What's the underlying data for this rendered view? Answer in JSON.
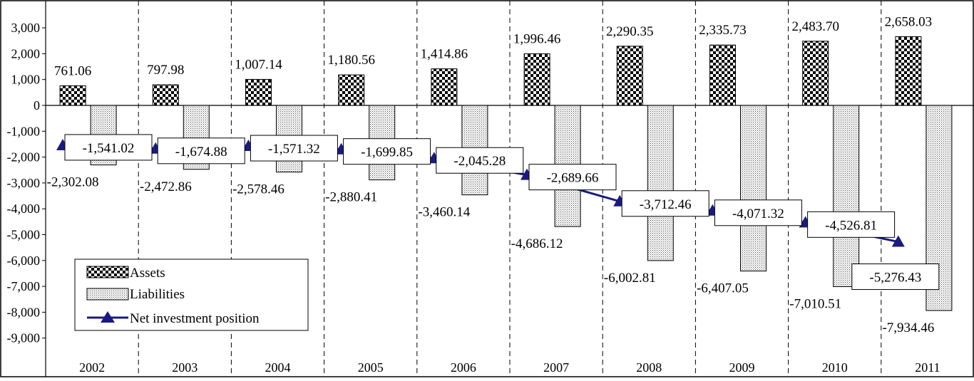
{
  "chart_data": {
    "type": "bar",
    "categories": [
      "2002",
      "2003",
      "2004",
      "2005",
      "2006",
      "2007",
      "2008",
      "2009",
      "2010",
      "2011"
    ],
    "series": [
      {
        "name": "Assets",
        "kind": "bar",
        "pattern": "checkerboard",
        "values": [
          761.06,
          797.98,
          1007.14,
          1180.56,
          1414.86,
          1996.46,
          2290.35,
          2335.73,
          2483.7,
          2658.03
        ],
        "labels": [
          "761.06",
          "797.98",
          "1,007.14",
          "1,180.56",
          "1,414.86",
          "1,996.46",
          "2,290.35",
          "2,335.73",
          "2,483.70",
          "2,658.03"
        ]
      },
      {
        "name": "Liabilities",
        "kind": "bar",
        "pattern": "dotted",
        "values": [
          -2302.08,
          -2472.86,
          -2578.46,
          -2880.41,
          -3460.14,
          -4686.12,
          -6002.81,
          -6407.05,
          -7010.51,
          -7934.46
        ],
        "labels": [
          "-2,302.08",
          "-2,472.86",
          "-2,578.46",
          "-2,880.41",
          "-3,460.14",
          "-4,686.12",
          "-6,002.81",
          "-6,407.05",
          "-7,010.51",
          "-7,934.46"
        ]
      },
      {
        "name": "Net investment position",
        "kind": "line",
        "marker": "triangle",
        "color": "#1a1a80",
        "values": [
          -1541.02,
          -1674.88,
          -1571.32,
          -1699.85,
          -2045.28,
          -2689.66,
          -3712.46,
          -4071.32,
          -4526.81,
          -5276.43
        ],
        "labels": [
          "-1,541.02",
          "-1,674.88",
          "-1,571.32",
          "-1,699.85",
          "-2,045.28",
          "-2,689.66",
          "-3,712.46",
          "-4,071.32",
          "-4,526.81",
          "-5,276.43"
        ]
      }
    ],
    "y_ticks": [
      3000,
      2000,
      1000,
      0,
      -1000,
      -2000,
      -3000,
      -4000,
      -5000,
      -6000,
      -7000,
      -8000,
      -9000
    ],
    "y_tick_labels": [
      "3,000",
      "2,000",
      "1,000",
      "0",
      "-1,000",
      "-2,000",
      "-3,000",
      "-4,000",
      "-5,000",
      "-6,000",
      "-7,000",
      "-8,000",
      "-9,000"
    ],
    "ylim": [
      -9000,
      3000
    ],
    "vertical_category_separators": "dashed",
    "legend_position": "bottom-left",
    "title": "",
    "xlabel": "",
    "ylabel": ""
  }
}
